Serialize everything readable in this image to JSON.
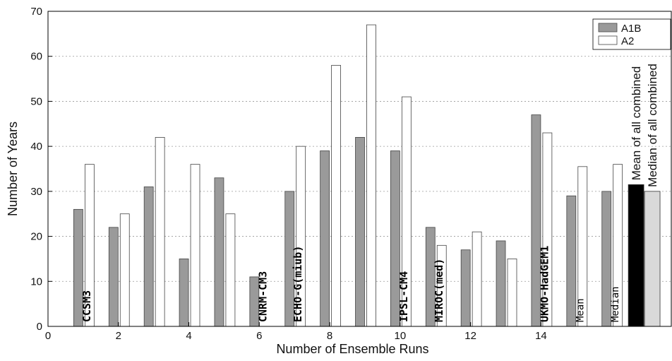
{
  "chart_data": {
    "type": "bar",
    "xlabel": "Number of Ensemble Runs",
    "ylabel": "Number of Years",
    "ylim": [
      0,
      70
    ],
    "xlim": [
      0,
      17.7
    ],
    "x_ticks": [
      0,
      2,
      4,
      6,
      8,
      10,
      12,
      14
    ],
    "y_ticks": [
      0,
      10,
      20,
      30,
      40,
      50,
      60,
      70
    ],
    "grid": "horizontal dotted",
    "legend_position": "top-right",
    "series": [
      {
        "name": "A1B",
        "color": "#9a9a9a",
        "values": [
          26,
          22,
          31,
          15,
          33,
          11,
          30,
          39,
          42,
          39,
          22,
          17,
          19,
          47,
          29,
          30
        ]
      },
      {
        "name": "A2",
        "color": "#ffffff",
        "values": [
          36,
          25,
          42,
          36,
          25,
          null,
          40,
          58,
          67,
          51,
          18,
          21,
          15,
          43,
          35.5,
          36
        ]
      }
    ],
    "categories": [
      1,
      2,
      3,
      4,
      5,
      6,
      7,
      8,
      9,
      10,
      11,
      12,
      13,
      14,
      15,
      16
    ],
    "model_labels": [
      {
        "text": "CCSM3",
        "at": 1,
        "style": "model"
      },
      {
        "text": "CNRM-CM3",
        "at": 6,
        "style": "model"
      },
      {
        "text": "ECHO-G(miub)",
        "at": 7,
        "style": "model"
      },
      {
        "text": "IPSL-CM4",
        "at": 10,
        "style": "model"
      },
      {
        "text": "MIROC(med)",
        "at": 11,
        "style": "model"
      },
      {
        "text": "UKMO-HadGEM1",
        "at": 14,
        "style": "model"
      },
      {
        "text": "Mean",
        "at": 15,
        "style": "stat"
      },
      {
        "text": "Median",
        "at": 16,
        "style": "stat"
      }
    ],
    "combined": [
      {
        "label": "Mean of all combined",
        "value": 31.5,
        "color": "#000000"
      },
      {
        "label": "Median of all combined",
        "value": 30,
        "color": "#d9d9d9"
      }
    ]
  }
}
